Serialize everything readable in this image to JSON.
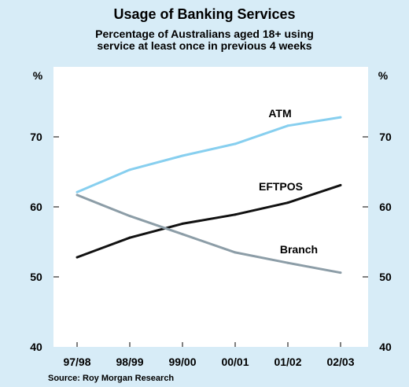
{
  "chart_data": {
    "type": "line",
    "title": "Usage of Banking Services",
    "subtitle_lines": [
      "Percentage of Australians aged 18+ using",
      "service at least once in previous 4 weeks"
    ],
    "ylabel_left": "%",
    "ylabel_right": "%",
    "ylim": [
      40,
      80
    ],
    "yticks": [
      40,
      50,
      60,
      70
    ],
    "categories": [
      "97/98",
      "98/99",
      "99/00",
      "00/01",
      "01/02",
      "02/03"
    ],
    "series": [
      {
        "name": "ATM",
        "color": "#87cfef",
        "values": [
          62.1,
          65.3,
          67.3,
          69.0,
          71.6,
          72.8
        ]
      },
      {
        "name": "EFTPOS",
        "color": "#111111",
        "values": [
          52.8,
          55.6,
          57.6,
          58.9,
          60.6,
          63.1
        ]
      },
      {
        "name": "Branch",
        "color": "#8c9da7",
        "values": [
          61.7,
          58.7,
          56.1,
          53.5,
          52.0,
          50.6
        ]
      }
    ],
    "source": "Source: Roy Morgan Research",
    "grid": false,
    "colors": {
      "background": "#d7ecf7",
      "plot_area": "#ffffff"
    }
  }
}
